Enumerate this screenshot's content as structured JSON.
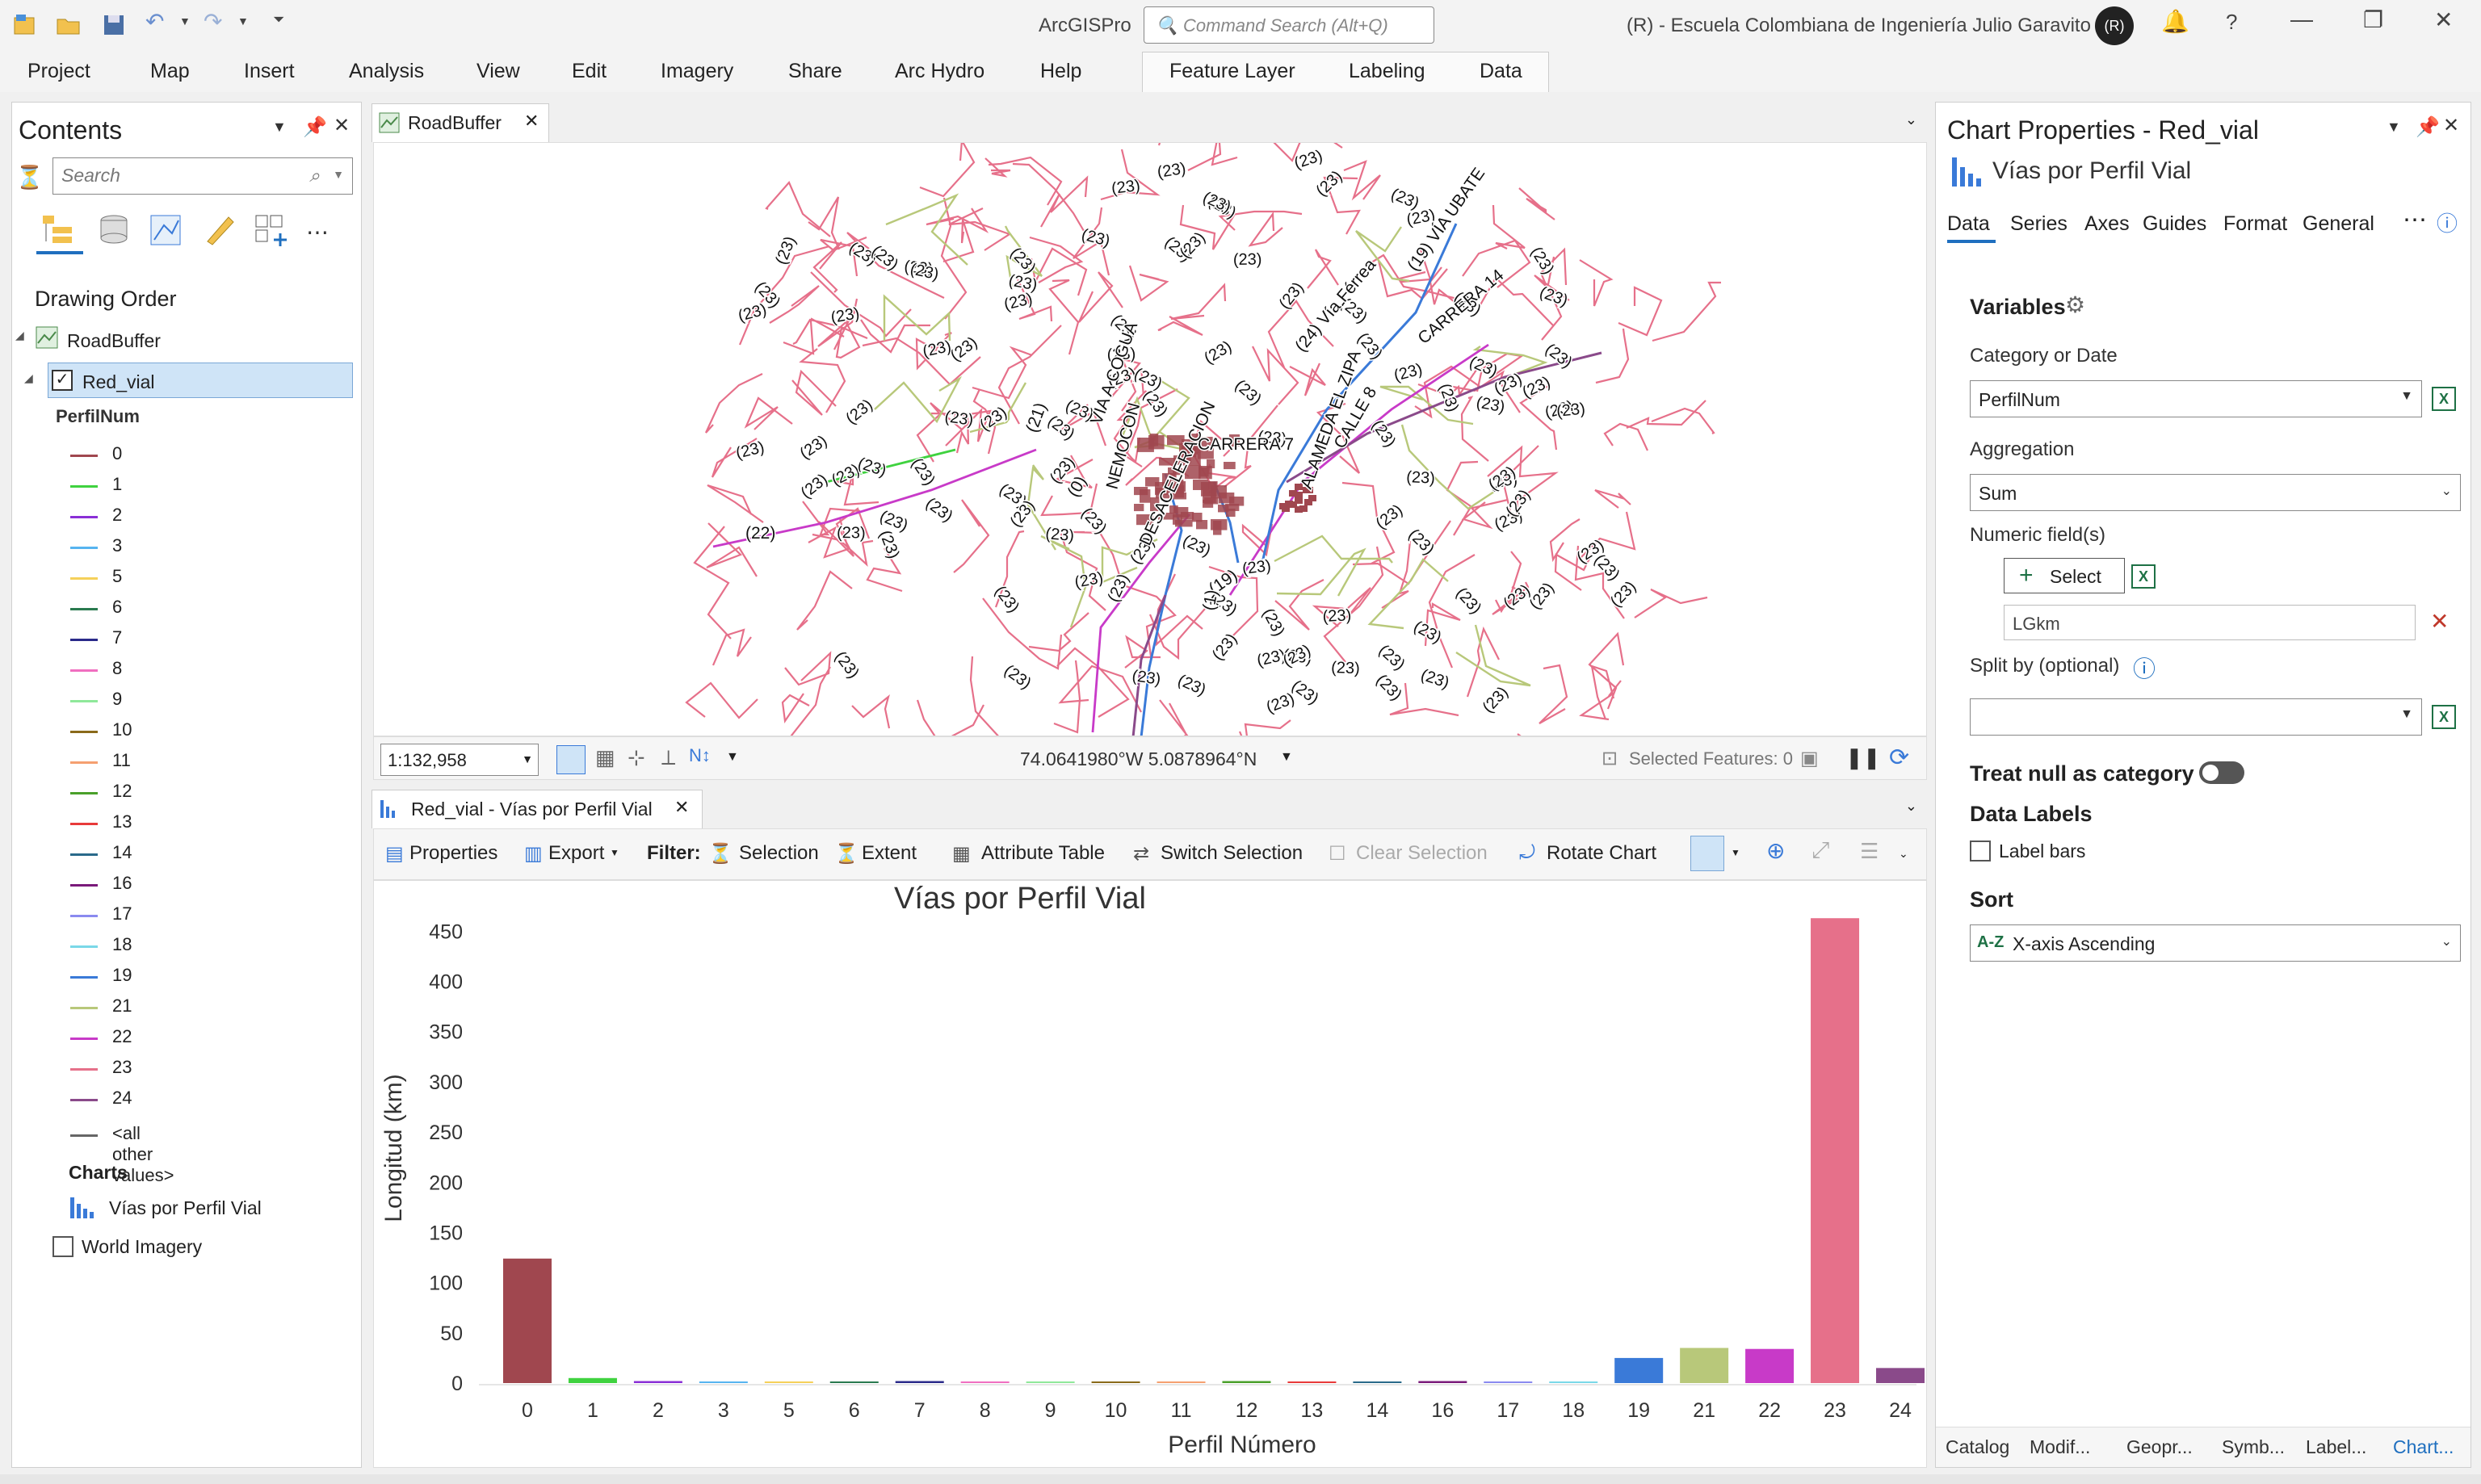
{
  "titlebar": {
    "app_title": "ArcGISPro",
    "command_search_placeholder": "Command Search (Alt+Q)",
    "org_name": "(R)  -  Escuela Colombiana de Ingeniería Julio Garavito",
    "avatar_initials": "(R)"
  },
  "ribbon": {
    "tabs": [
      "Project",
      "Map",
      "Insert",
      "Analysis",
      "View",
      "Edit",
      "Imagery",
      "Share",
      "Arc Hydro",
      "Help"
    ],
    "context_tabs": [
      "Feature Layer",
      "Labeling",
      "Data"
    ]
  },
  "contents": {
    "title": "Contents",
    "search_placeholder": "Search",
    "drawing_order_label": "Drawing Order",
    "map_name": "RoadBuffer",
    "layer_name": "Red_vial",
    "field_name": "PerfilNum",
    "legend": [
      {
        "label": "0",
        "color": "#a0474f"
      },
      {
        "label": "1",
        "color": "#3fd23f"
      },
      {
        "label": "2",
        "color": "#8a2fd6"
      },
      {
        "label": "3",
        "color": "#56b4f0"
      },
      {
        "label": "5",
        "color": "#f5d05a"
      },
      {
        "label": "6",
        "color": "#2a7a4f"
      },
      {
        "label": "7",
        "color": "#2a2a8a"
      },
      {
        "label": "8",
        "color": "#f06fc0"
      },
      {
        "label": "9",
        "color": "#8fe89a"
      },
      {
        "label": "10",
        "color": "#8a6a1a"
      },
      {
        "label": "11",
        "color": "#f5a070"
      },
      {
        "label": "12",
        "color": "#4aa02a"
      },
      {
        "label": "13",
        "color": "#e83a3a"
      },
      {
        "label": "14",
        "color": "#2a6a8a"
      },
      {
        "label": "16",
        "color": "#7a1a7a"
      },
      {
        "label": "17",
        "color": "#8a8af0"
      },
      {
        "label": "18",
        "color": "#7ad8e8"
      },
      {
        "label": "19",
        "color": "#3a7ad8"
      },
      {
        "label": "21",
        "color": "#b8c87a"
      },
      {
        "label": "22",
        "color": "#c83ac8"
      },
      {
        "label": "23",
        "color": "#e6708a"
      },
      {
        "label": "24",
        "color": "#8a4a8a"
      }
    ],
    "other_values_label": "<all other values>",
    "charts_label": "Charts",
    "chart_item": "Vías por Perfil Vial",
    "basemap": "World Imagery"
  },
  "map": {
    "tab_name": "RoadBuffer",
    "scale": "1:132,958",
    "coordinates": "74.0641980°W 5.0878964°N",
    "selected_features": "Selected Features: 0",
    "labels_23": "(23)",
    "labels_other": [
      "(22)",
      "(21)",
      "(0)",
      "(24) Vía Férrea",
      "(19) VÍA UBATE",
      "CALLE 8",
      "CARRERA 14",
      "CARRERA 7",
      "VIA A COGUA",
      "NEMOCON",
      "ALAMEDA EL ZIPA",
      "DESACELERACION",
      "(19)",
      "(1)"
    ]
  },
  "chart_view": {
    "tab_name": "Red_vial - Vías por Perfil Vial",
    "toolbar": {
      "properties": "Properties",
      "export": "Export",
      "filter": "Filter:",
      "selection": "Selection",
      "extent": "Extent",
      "attribute_table": "Attribute Table",
      "switch_selection": "Switch Selection",
      "clear_selection": "Clear Selection",
      "rotate_chart": "Rotate Chart"
    }
  },
  "chart_data": {
    "type": "bar",
    "title": "Vías por Perfil Vial",
    "xlabel": "Perfil Número",
    "ylabel": "Longitud (km)",
    "ylim": [
      0,
      450
    ],
    "yticks": [
      0,
      50,
      100,
      150,
      200,
      250,
      300,
      350,
      400,
      450
    ],
    "categories": [
      "0",
      "1",
      "2",
      "3",
      "5",
      "6",
      "7",
      "8",
      "9",
      "10",
      "11",
      "12",
      "13",
      "14",
      "16",
      "17",
      "18",
      "19",
      "21",
      "22",
      "23",
      "24"
    ],
    "values": [
      124,
      5,
      2,
      1,
      1,
      1,
      2,
      0.5,
      1,
      1,
      0.5,
      2,
      1,
      1,
      2,
      1,
      1,
      25,
      35,
      34,
      463,
      15
    ],
    "colors": [
      "#a0474f",
      "#3fd23f",
      "#8a2fd6",
      "#56b4f0",
      "#f5d05a",
      "#2a7a4f",
      "#2a2a8a",
      "#f06fc0",
      "#8fe89a",
      "#8a6a1a",
      "#f5a070",
      "#4aa02a",
      "#e83a3a",
      "#2a6a8a",
      "#7a1a7a",
      "#8a8af0",
      "#7ad8e8",
      "#3a7ad8",
      "#b8c87a",
      "#c83ac8",
      "#e6708a",
      "#8a4a8a"
    ],
    "grid": false,
    "legend": "none"
  },
  "chart_properties": {
    "title": "Chart Properties - Red_vial",
    "subtitle": "Vías por Perfil Vial",
    "tabs": [
      "Data",
      "Series",
      "Axes",
      "Guides",
      "Format",
      "General"
    ],
    "variables_label": "Variables",
    "category_label": "Category or Date",
    "category_value": "PerfilNum",
    "aggregation_label": "Aggregation",
    "aggregation_value": "Sum",
    "numeric_fields_label": "Numeric field(s)",
    "select_label": "Select",
    "numeric_field_value": "LGkm",
    "split_by_label": "Split by (optional)",
    "treat_null_label": "Treat null as category",
    "data_labels_label": "Data Labels",
    "label_bars_label": "Label bars",
    "sort_label": "Sort",
    "sort_value": "X-axis Ascending",
    "bottom_tabs": [
      "Catalog",
      "Modif...",
      "Geopr...",
      "Symb...",
      "Label...",
      "Chart..."
    ]
  }
}
